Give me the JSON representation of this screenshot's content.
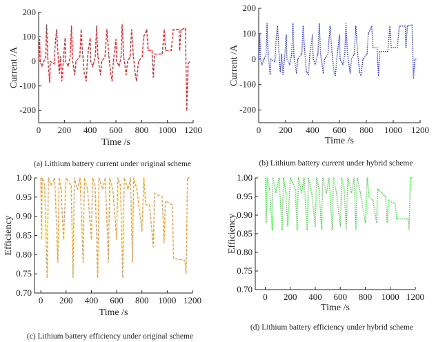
{
  "chart_data": [
    {
      "id": "a",
      "type": "line",
      "caption": "(a) Lithium battery current under original scheme",
      "xlabel": "Time /s",
      "ylabel": "Current /A",
      "xlim": [
        0,
        1200
      ],
      "ylim": [
        -250,
        200
      ],
      "xticks": [
        0,
        200,
        400,
        600,
        800,
        1000,
        1200
      ],
      "yticks": [
        200,
        100,
        0,
        -100,
        -200
      ],
      "color": "#e8232b",
      "style": "dashed",
      "points": [
        [
          0,
          0
        ],
        [
          8,
          90
        ],
        [
          12,
          0
        ],
        [
          25,
          -20
        ],
        [
          40,
          0
        ],
        [
          55,
          20
        ],
        [
          62,
          150
        ],
        [
          70,
          20
        ],
        [
          85,
          -85
        ],
        [
          90,
          0
        ],
        [
          120,
          -10
        ],
        [
          130,
          80
        ],
        [
          140,
          130
        ],
        [
          150,
          30
        ],
        [
          160,
          -50
        ],
        [
          170,
          20
        ],
        [
          180,
          -80
        ],
        [
          190,
          -5
        ],
        [
          205,
          95
        ],
        [
          210,
          0
        ],
        [
          230,
          -20
        ],
        [
          245,
          20
        ],
        [
          255,
          145
        ],
        [
          262,
          10
        ],
        [
          280,
          -55
        ],
        [
          290,
          0
        ],
        [
          320,
          20
        ],
        [
          330,
          130
        ],
        [
          340,
          40
        ],
        [
          355,
          -50
        ],
        [
          370,
          -80
        ],
        [
          380,
          20
        ],
        [
          400,
          95
        ],
        [
          405,
          0
        ],
        [
          420,
          -20
        ],
        [
          440,
          20
        ],
        [
          450,
          145
        ],
        [
          460,
          20
        ],
        [
          480,
          -55
        ],
        [
          490,
          0
        ],
        [
          515,
          20
        ],
        [
          530,
          130
        ],
        [
          545,
          25
        ],
        [
          560,
          -50
        ],
        [
          570,
          -80
        ],
        [
          580,
          0
        ],
        [
          600,
          90
        ],
        [
          605,
          0
        ],
        [
          625,
          -20
        ],
        [
          640,
          20
        ],
        [
          648,
          150
        ],
        [
          660,
          20
        ],
        [
          680,
          -55
        ],
        [
          690,
          0
        ],
        [
          710,
          20
        ],
        [
          722,
          130
        ],
        [
          735,
          25
        ],
        [
          750,
          -50
        ],
        [
          760,
          -80
        ],
        [
          775,
          0
        ],
        [
          805,
          20
        ],
        [
          815,
          100
        ],
        [
          840,
          130
        ],
        [
          850,
          45
        ],
        [
          880,
          45
        ],
        [
          890,
          -65
        ],
        [
          900,
          30
        ],
        [
          960,
          30
        ],
        [
          975,
          130
        ],
        [
          985,
          45
        ],
        [
          1030,
          45
        ],
        [
          1045,
          130
        ],
        [
          1090,
          130
        ],
        [
          1095,
          45
        ],
        [
          1105,
          130
        ],
        [
          1140,
          135
        ],
        [
          1150,
          -200
        ],
        [
          1160,
          -10
        ],
        [
          1175,
          0
        ]
      ]
    },
    {
      "id": "b",
      "type": "line",
      "caption": "(b) Lithium battery current under hybrid scheme",
      "xlabel": "Time /s",
      "ylabel": "Current /A",
      "xlim": [
        0,
        1200
      ],
      "ylim": [
        -250,
        200
      ],
      "xticks": [
        0,
        200,
        400,
        600,
        800,
        1000,
        1200
      ],
      "yticks": [
        200,
        100,
        0,
        -100,
        -200
      ],
      "color": "#2a2ee0",
      "style": "dotted",
      "points": [
        [
          0,
          0
        ],
        [
          8,
          95
        ],
        [
          12,
          0
        ],
        [
          25,
          -20
        ],
        [
          40,
          0
        ],
        [
          55,
          20
        ],
        [
          62,
          140
        ],
        [
          70,
          20
        ],
        [
          85,
          -60
        ],
        [
          90,
          0
        ],
        [
          120,
          -10
        ],
        [
          130,
          80
        ],
        [
          140,
          130
        ],
        [
          150,
          30
        ],
        [
          160,
          -50
        ],
        [
          170,
          20
        ],
        [
          180,
          -60
        ],
        [
          190,
          -5
        ],
        [
          205,
          95
        ],
        [
          210,
          0
        ],
        [
          230,
          -20
        ],
        [
          245,
          20
        ],
        [
          255,
          140
        ],
        [
          262,
          10
        ],
        [
          280,
          -55
        ],
        [
          290,
          0
        ],
        [
          320,
          20
        ],
        [
          330,
          130
        ],
        [
          340,
          40
        ],
        [
          355,
          -50
        ],
        [
          370,
          -60
        ],
        [
          380,
          20
        ],
        [
          400,
          95
        ],
        [
          405,
          0
        ],
        [
          420,
          -20
        ],
        [
          440,
          20
        ],
        [
          450,
          140
        ],
        [
          460,
          20
        ],
        [
          480,
          -55
        ],
        [
          490,
          0
        ],
        [
          515,
          20
        ],
        [
          530,
          130
        ],
        [
          545,
          25
        ],
        [
          560,
          -50
        ],
        [
          570,
          -65
        ],
        [
          580,
          0
        ],
        [
          600,
          95
        ],
        [
          605,
          0
        ],
        [
          625,
          -20
        ],
        [
          640,
          20
        ],
        [
          648,
          140
        ],
        [
          660,
          20
        ],
        [
          680,
          -55
        ],
        [
          690,
          0
        ],
        [
          710,
          20
        ],
        [
          722,
          130
        ],
        [
          735,
          25
        ],
        [
          750,
          -50
        ],
        [
          760,
          -65
        ],
        [
          775,
          0
        ],
        [
          805,
          20
        ],
        [
          815,
          100
        ],
        [
          840,
          130
        ],
        [
          850,
          45
        ],
        [
          880,
          45
        ],
        [
          890,
          -65
        ],
        [
          900,
          30
        ],
        [
          960,
          30
        ],
        [
          975,
          130
        ],
        [
          985,
          45
        ],
        [
          1030,
          45
        ],
        [
          1045,
          130
        ],
        [
          1090,
          130
        ],
        [
          1095,
          45
        ],
        [
          1105,
          130
        ],
        [
          1140,
          135
        ],
        [
          1150,
          -75
        ],
        [
          1160,
          0
        ],
        [
          1175,
          0
        ]
      ]
    },
    {
      "id": "c",
      "type": "line",
      "caption": "(c) Lithium battery efficiency under original scheme",
      "xlabel": "Time /s",
      "ylabel": "Efficiency",
      "xlim": [
        -50,
        1200
      ],
      "ylim": [
        0.7,
        1.0
      ],
      "xticks": [
        0,
        200,
        400,
        600,
        800,
        1000,
        1200
      ],
      "yticks": [
        1.0,
        0.95,
        0.9,
        0.85,
        0.8,
        0.75,
        0.7
      ],
      "color": "#f0a030",
      "style": "dashed",
      "points": [
        [
          0,
          1.0
        ],
        [
          5,
          0.84
        ],
        [
          10,
          1.0
        ],
        [
          30,
          0.98
        ],
        [
          50,
          0.74
        ],
        [
          60,
          1.0
        ],
        [
          80,
          0.98
        ],
        [
          110,
          1.0
        ],
        [
          135,
          0.78
        ],
        [
          145,
          1.0
        ],
        [
          160,
          0.97
        ],
        [
          180,
          0.84
        ],
        [
          200,
          1.0
        ],
        [
          240,
          0.98
        ],
        [
          255,
          0.74
        ],
        [
          265,
          1.0
        ],
        [
          290,
          0.97
        ],
        [
          310,
          1.0
        ],
        [
          335,
          0.78
        ],
        [
          345,
          1.0
        ],
        [
          370,
          0.97
        ],
        [
          400,
          0.84
        ],
        [
          410,
          1.0
        ],
        [
          430,
          0.98
        ],
        [
          450,
          0.74
        ],
        [
          460,
          1.0
        ],
        [
          490,
          0.97
        ],
        [
          510,
          1.0
        ],
        [
          535,
          0.78
        ],
        [
          545,
          1.0
        ],
        [
          570,
          0.97
        ],
        [
          600,
          0.84
        ],
        [
          610,
          1.0
        ],
        [
          630,
          0.98
        ],
        [
          648,
          0.74
        ],
        [
          660,
          1.0
        ],
        [
          690,
          0.97
        ],
        [
          710,
          1.0
        ],
        [
          725,
          0.78
        ],
        [
          735,
          1.0
        ],
        [
          760,
          0.97
        ],
        [
          800,
          0.86
        ],
        [
          815,
          1.0
        ],
        [
          830,
          0.93
        ],
        [
          860,
          0.93
        ],
        [
          890,
          0.82
        ],
        [
          900,
          0.96
        ],
        [
          960,
          0.95
        ],
        [
          975,
          0.83
        ],
        [
          985,
          0.94
        ],
        [
          1040,
          0.93
        ],
        [
          1050,
          0.79
        ],
        [
          1140,
          0.785
        ],
        [
          1150,
          0.75
        ],
        [
          1160,
          1.0
        ],
        [
          1175,
          1.0
        ]
      ]
    },
    {
      "id": "d",
      "type": "line",
      "caption": "(d) Lithium battery efficiency under hybrid scheme",
      "xlabel": "Time /s",
      "ylabel": "Efficiency",
      "xlim": [
        -80,
        1200
      ],
      "ylim": [
        0.7,
        1.0
      ],
      "xticks": [
        0,
        200,
        400,
        600,
        800,
        1000,
        1200
      ],
      "yticks": [
        1.0,
        0.95,
        0.9,
        0.85,
        0.8,
        0.75,
        0.7
      ],
      "color": "#30e030",
      "style": "dotted",
      "points": [
        [
          0,
          1.0
        ],
        [
          8,
          0.88
        ],
        [
          15,
          1.0
        ],
        [
          35,
          0.97
        ],
        [
          55,
          0.86
        ],
        [
          62,
          1.0
        ],
        [
          85,
          0.96
        ],
        [
          110,
          1.0
        ],
        [
          135,
          0.86
        ],
        [
          145,
          1.0
        ],
        [
          165,
          0.96
        ],
        [
          180,
          0.87
        ],
        [
          200,
          1.0
        ],
        [
          240,
          0.97
        ],
        [
          255,
          0.86
        ],
        [
          265,
          1.0
        ],
        [
          290,
          0.96
        ],
        [
          310,
          1.0
        ],
        [
          335,
          0.86
        ],
        [
          345,
          1.0
        ],
        [
          370,
          0.96
        ],
        [
          400,
          0.87
        ],
        [
          410,
          1.0
        ],
        [
          430,
          0.97
        ],
        [
          450,
          0.86
        ],
        [
          460,
          1.0
        ],
        [
          490,
          0.96
        ],
        [
          510,
          1.0
        ],
        [
          535,
          0.86
        ],
        [
          545,
          1.0
        ],
        [
          570,
          0.96
        ],
        [
          600,
          0.87
        ],
        [
          610,
          1.0
        ],
        [
          630,
          0.97
        ],
        [
          648,
          0.86
        ],
        [
          660,
          1.0
        ],
        [
          690,
          0.96
        ],
        [
          710,
          1.0
        ],
        [
          725,
          0.86
        ],
        [
          735,
          1.0
        ],
        [
          760,
          0.96
        ],
        [
          800,
          0.88
        ],
        [
          815,
          1.0
        ],
        [
          830,
          0.95
        ],
        [
          860,
          0.94
        ],
        [
          890,
          0.88
        ],
        [
          900,
          0.97
        ],
        [
          960,
          0.95
        ],
        [
          975,
          0.88
        ],
        [
          985,
          0.94
        ],
        [
          1040,
          0.93
        ],
        [
          1050,
          0.89
        ],
        [
          1140,
          0.89
        ],
        [
          1150,
          0.86
        ],
        [
          1160,
          1.0
        ],
        [
          1175,
          1.0
        ]
      ]
    }
  ]
}
